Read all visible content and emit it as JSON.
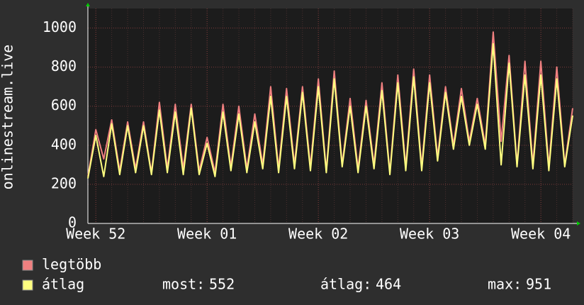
{
  "chart_data": {
    "type": "line",
    "y_label": "onlinestream.live",
    "xlim": [
      -0.5,
      30
    ],
    "xticks": [
      {
        "value": 0,
        "label": "Week 52"
      },
      {
        "value": 7,
        "label": "Week 01"
      },
      {
        "value": 14,
        "label": "Week 02"
      },
      {
        "value": 21,
        "label": "Week 03"
      },
      {
        "value": 28,
        "label": "Week 04"
      }
    ],
    "ylim": [
      0,
      1100
    ],
    "yticks": [
      0,
      200,
      400,
      600,
      800,
      1000
    ],
    "grid": true,
    "x": [
      -0.5,
      0,
      0.5,
      1,
      1.5,
      2,
      2.5,
      3,
      3.5,
      4,
      4.5,
      5,
      5.5,
      6,
      6.5,
      7,
      7.5,
      8,
      8.5,
      9,
      9.5,
      10,
      10.5,
      11,
      11.5,
      12,
      12.5,
      13,
      13.5,
      14,
      14.5,
      15,
      15.5,
      16,
      16.5,
      17,
      17.5,
      18,
      18.5,
      19,
      19.5,
      20,
      20.5,
      21,
      21.5,
      22,
      22.5,
      23,
      23.5,
      24,
      24.5,
      25,
      25.5,
      26,
      26.5,
      27,
      27.5,
      28,
      28.5,
      29,
      29.5,
      30
    ],
    "series": [
      {
        "name": "legtöbb",
        "color": "#f08080",
        "values": [
          240,
          480,
          330,
          530,
          270,
          520,
          280,
          520,
          260,
          620,
          280,
          610,
          280,
          610,
          270,
          440,
          260,
          610,
          290,
          600,
          280,
          560,
          300,
          700,
          280,
          690,
          300,
          700,
          290,
          740,
          270,
          780,
          300,
          640,
          280,
          630,
          300,
          720,
          260,
          760,
          290,
          790,
          290,
          760,
          340,
          700,
          400,
          690,
          420,
          640,
          400,
          980,
          420,
          860,
          300,
          830,
          300,
          830,
          290,
          800,
          300,
          590
        ]
      },
      {
        "name": "átlag",
        "color": "#ffff80",
        "values": [
          230,
          450,
          240,
          510,
          250,
          500,
          260,
          500,
          250,
          580,
          260,
          570,
          250,
          590,
          250,
          410,
          240,
          570,
          270,
          560,
          260,
          520,
          280,
          650,
          260,
          650,
          280,
          670,
          270,
          700,
          260,
          740,
          290,
          600,
          260,
          600,
          280,
          680,
          250,
          720,
          270,
          750,
          270,
          720,
          320,
          670,
          380,
          650,
          400,
          610,
          380,
          920,
          300,
          820,
          290,
          760,
          280,
          760,
          270,
          740,
          290,
          552
        ]
      }
    ],
    "stats": [
      {
        "label": "most:",
        "value": 552
      },
      {
        "label": "átlag:",
        "value": 464
      },
      {
        "label": "max:",
        "value": 951
      }
    ]
  }
}
